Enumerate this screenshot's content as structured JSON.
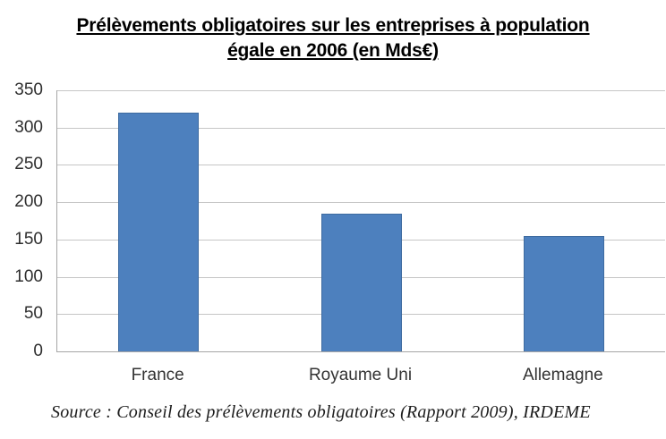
{
  "chart_data": {
    "type": "bar",
    "title": "Prélèvements obligatoires sur les entreprises à population égale en 2006 (en Mds€)",
    "categories": [
      "France",
      "Royaume Uni",
      "Allemagne"
    ],
    "values": [
      320,
      185,
      155
    ],
    "xlabel": "",
    "ylabel": "",
    "ylim": [
      0,
      350
    ],
    "yticks": [
      0,
      50,
      100,
      150,
      200,
      250,
      300,
      350
    ],
    "grid": true,
    "legend": false,
    "bar_color": "#4D80BE",
    "bar_border_color": "#3E6BA0",
    "gridline_color": "#C6C6C6",
    "axis_color": "#A6A6A6",
    "source_note": "Source : Conseil des prélèvements obligatoires (Rapport 2009), IRDEME"
  }
}
